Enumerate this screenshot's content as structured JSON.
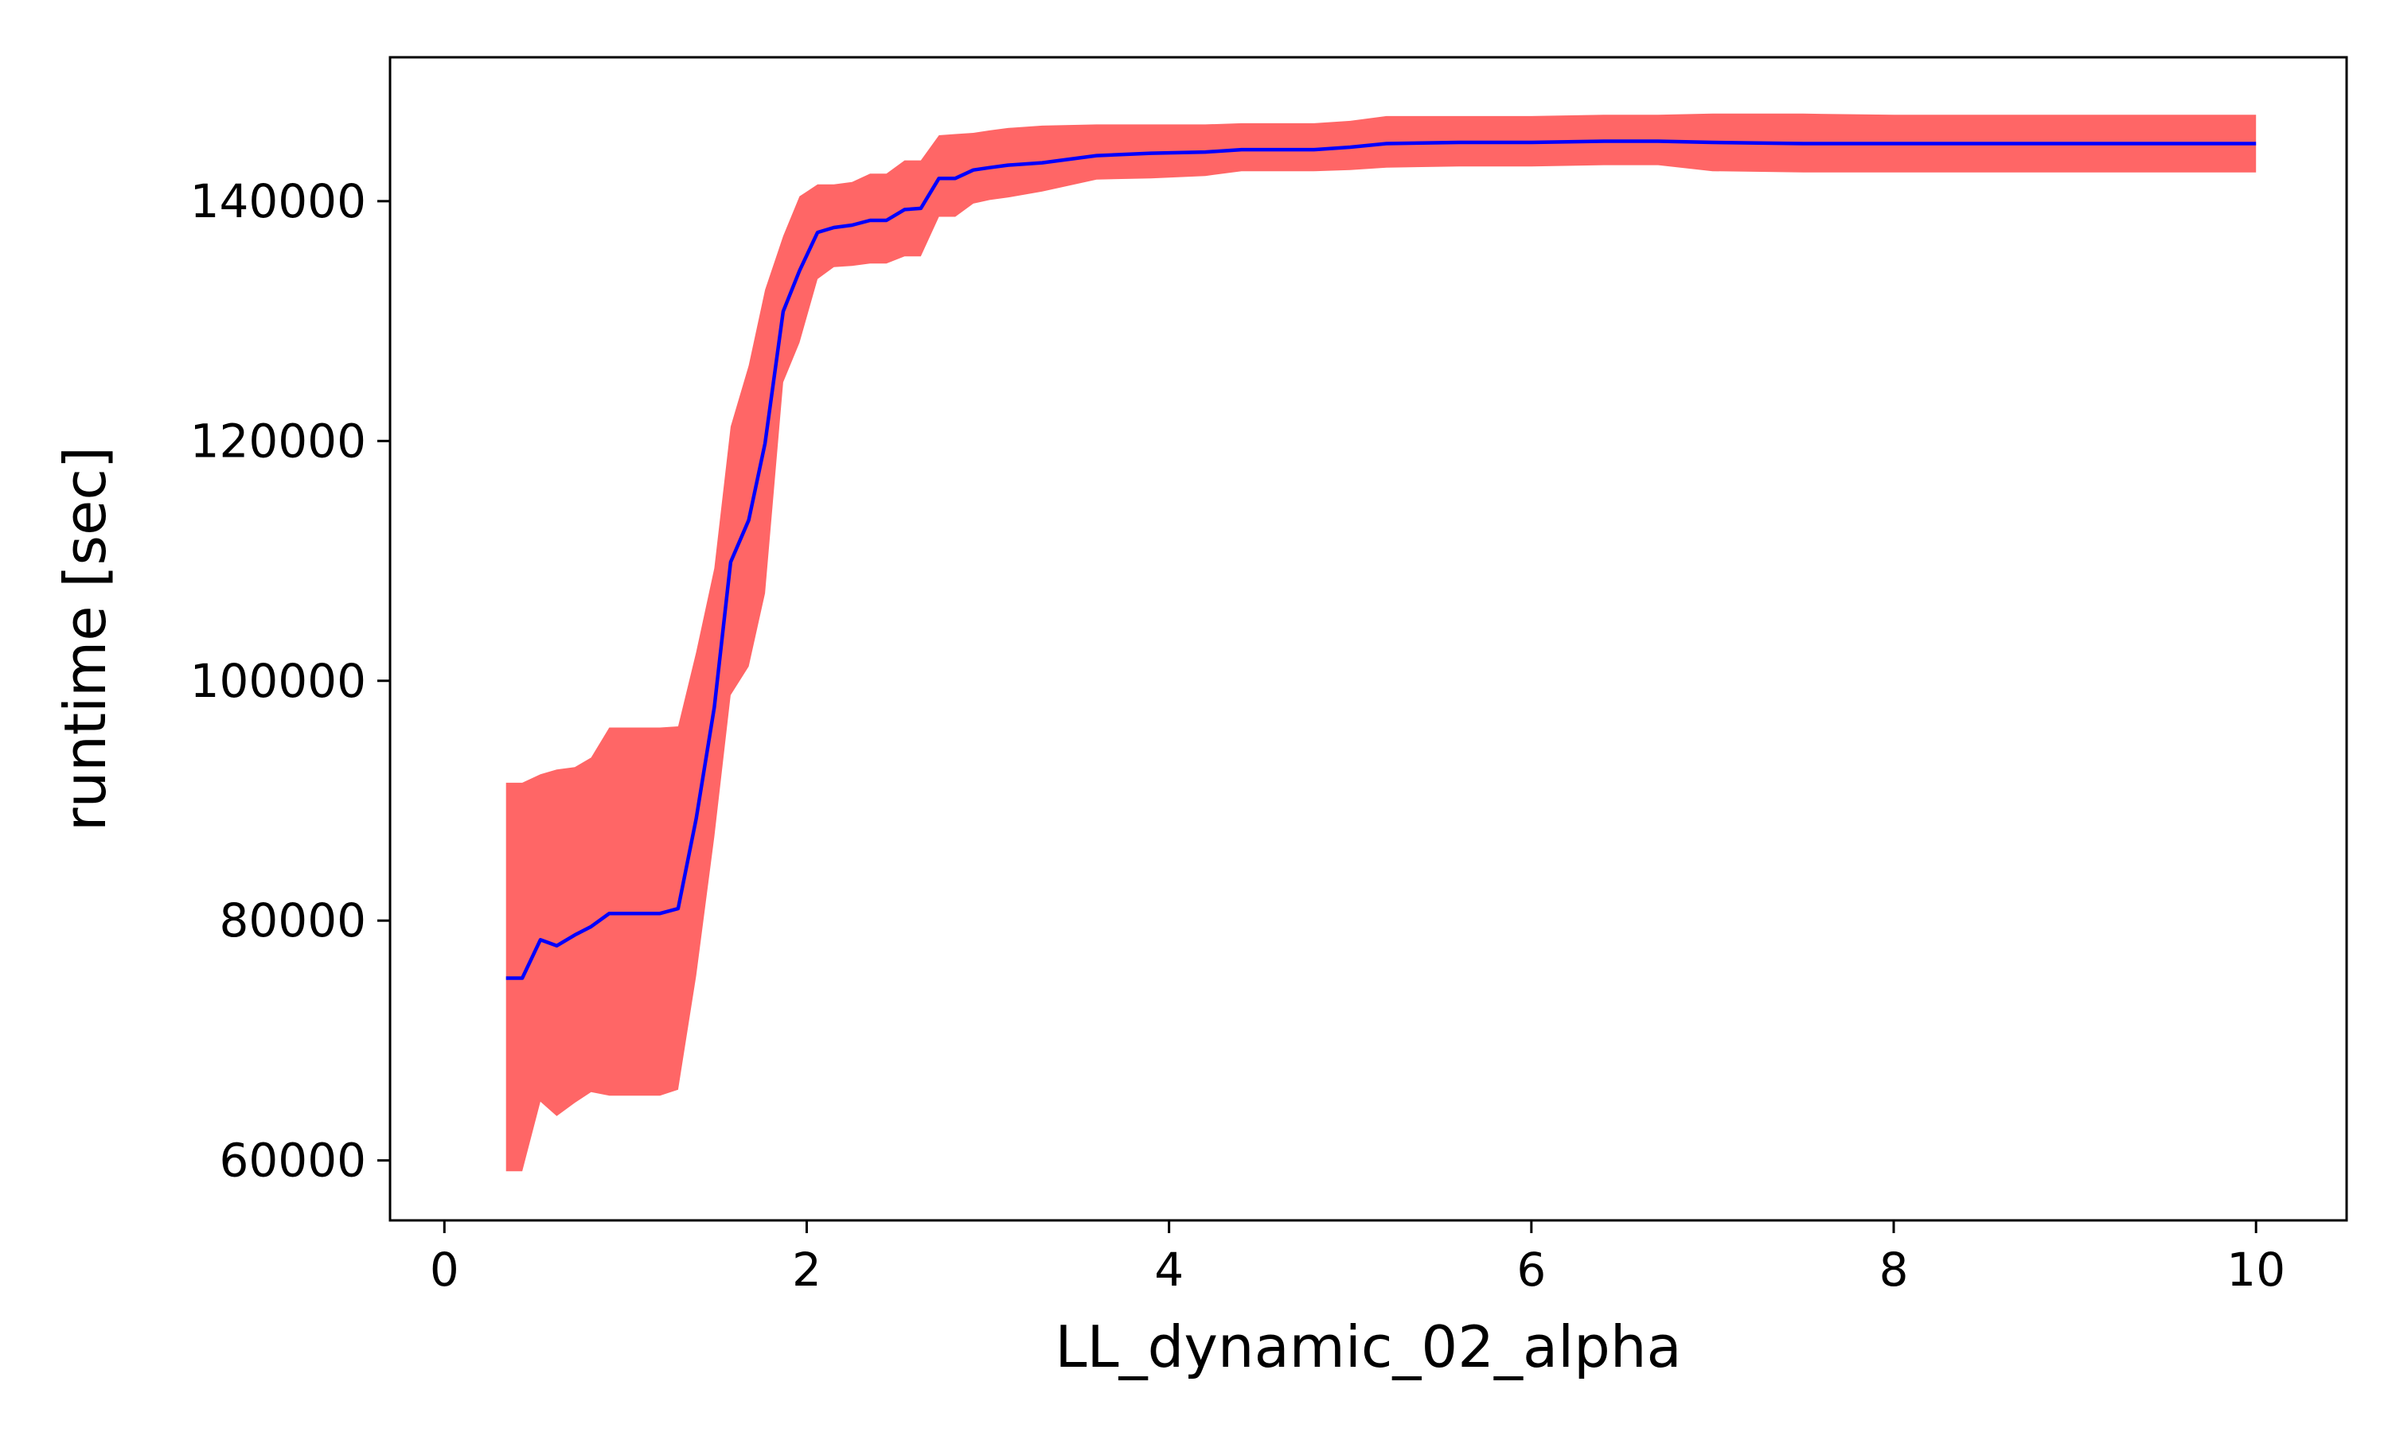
{
  "colors": {
    "band": "#ff6666",
    "line": "#0000ff",
    "axes": "#000000",
    "background": "#ffffff"
  },
  "chart_data": {
    "type": "line",
    "title": "",
    "xlabel": "LL_dynamic_02_alpha",
    "ylabel": "runtime [sec]",
    "xlim": [
      -0.3,
      10.5
    ],
    "ylim": [
      55000,
      152000
    ],
    "xticks": [
      0,
      2,
      4,
      6,
      8,
      10
    ],
    "xtick_labels": [
      "0",
      "2",
      "4",
      "6",
      "8",
      "10"
    ],
    "yticks": [
      60000,
      80000,
      100000,
      120000,
      140000
    ],
    "ytick_labels": [
      "60000",
      "80000",
      "100000",
      "120000",
      "140000"
    ],
    "grid": false,
    "legend": "none",
    "series": [
      {
        "type": "line",
        "x": [
          0.34,
          0.43,
          0.53,
          0.62,
          0.72,
          0.81,
          0.91,
          1.0,
          1.1,
          1.19,
          1.29,
          1.39,
          1.49,
          1.58,
          1.68,
          1.77,
          1.87,
          1.96,
          2.06,
          2.15,
          2.25,
          2.35,
          2.44,
          2.54,
          2.63,
          2.73,
          2.82,
          2.92,
          3.01,
          3.11,
          3.3,
          3.6,
          3.9,
          4.2,
          4.4,
          4.8,
          5.0,
          5.2,
          5.6,
          6.0,
          6.4,
          6.7,
          7.0,
          7.5,
          8.0,
          8.5,
          9.0,
          9.5,
          10.0
        ],
        "y": [
          75200,
          75200,
          78400,
          77900,
          78800,
          79500,
          80600,
          80600,
          80600,
          80600,
          81000,
          88500,
          97800,
          109900,
          113400,
          119800,
          130800,
          134200,
          137400,
          137800,
          138000,
          138400,
          138400,
          139300,
          139400,
          141900,
          141900,
          142600,
          142800,
          143000,
          143200,
          143800,
          144000,
          144100,
          144300,
          144300,
          144500,
          144800,
          144900,
          144900,
          145000,
          145000,
          144900,
          144800,
          144800,
          144800,
          144800,
          144800,
          144800
        ]
      },
      {
        "type": "band",
        "x": [
          0.34,
          0.43,
          0.53,
          0.62,
          0.72,
          0.81,
          0.91,
          1.0,
          1.1,
          1.19,
          1.29,
          1.39,
          1.49,
          1.58,
          1.68,
          1.77,
          1.87,
          1.96,
          2.06,
          2.15,
          2.25,
          2.35,
          2.44,
          2.54,
          2.63,
          2.73,
          2.82,
          2.92,
          3.01,
          3.11,
          3.3,
          3.6,
          3.9,
          4.2,
          4.4,
          4.8,
          5.0,
          5.2,
          5.6,
          6.0,
          6.4,
          6.7,
          7.0,
          7.5,
          8.0,
          8.5,
          9.0,
          9.5,
          10.0
        ],
        "upper": [
          91500,
          91500,
          92200,
          92600,
          92800,
          93600,
          96100,
          96100,
          96100,
          96100,
          96200,
          102400,
          109400,
          121200,
          126300,
          132600,
          137100,
          140400,
          141400,
          141400,
          141600,
          142300,
          142300,
          143400,
          143400,
          145500,
          145600,
          145700,
          145900,
          146100,
          146300,
          146400,
          146400,
          146400,
          146500,
          146500,
          146700,
          147100,
          147100,
          147100,
          147200,
          147200,
          147300,
          147300,
          147200,
          147200,
          147200,
          147200,
          147200
        ],
        "lower": [
          59100,
          59100,
          64900,
          63700,
          64800,
          65700,
          65400,
          65400,
          65400,
          65400,
          65900,
          75400,
          87000,
          98800,
          101200,
          107300,
          124900,
          128200,
          133500,
          134500,
          134600,
          134800,
          134800,
          135400,
          135400,
          138700,
          138700,
          139800,
          140100,
          140300,
          140800,
          141800,
          141900,
          142100,
          142500,
          142500,
          142600,
          142800,
          142900,
          142900,
          143000,
          143000,
          142500,
          142400,
          142400,
          142400,
          142400,
          142400,
          142400
        ]
      }
    ]
  }
}
